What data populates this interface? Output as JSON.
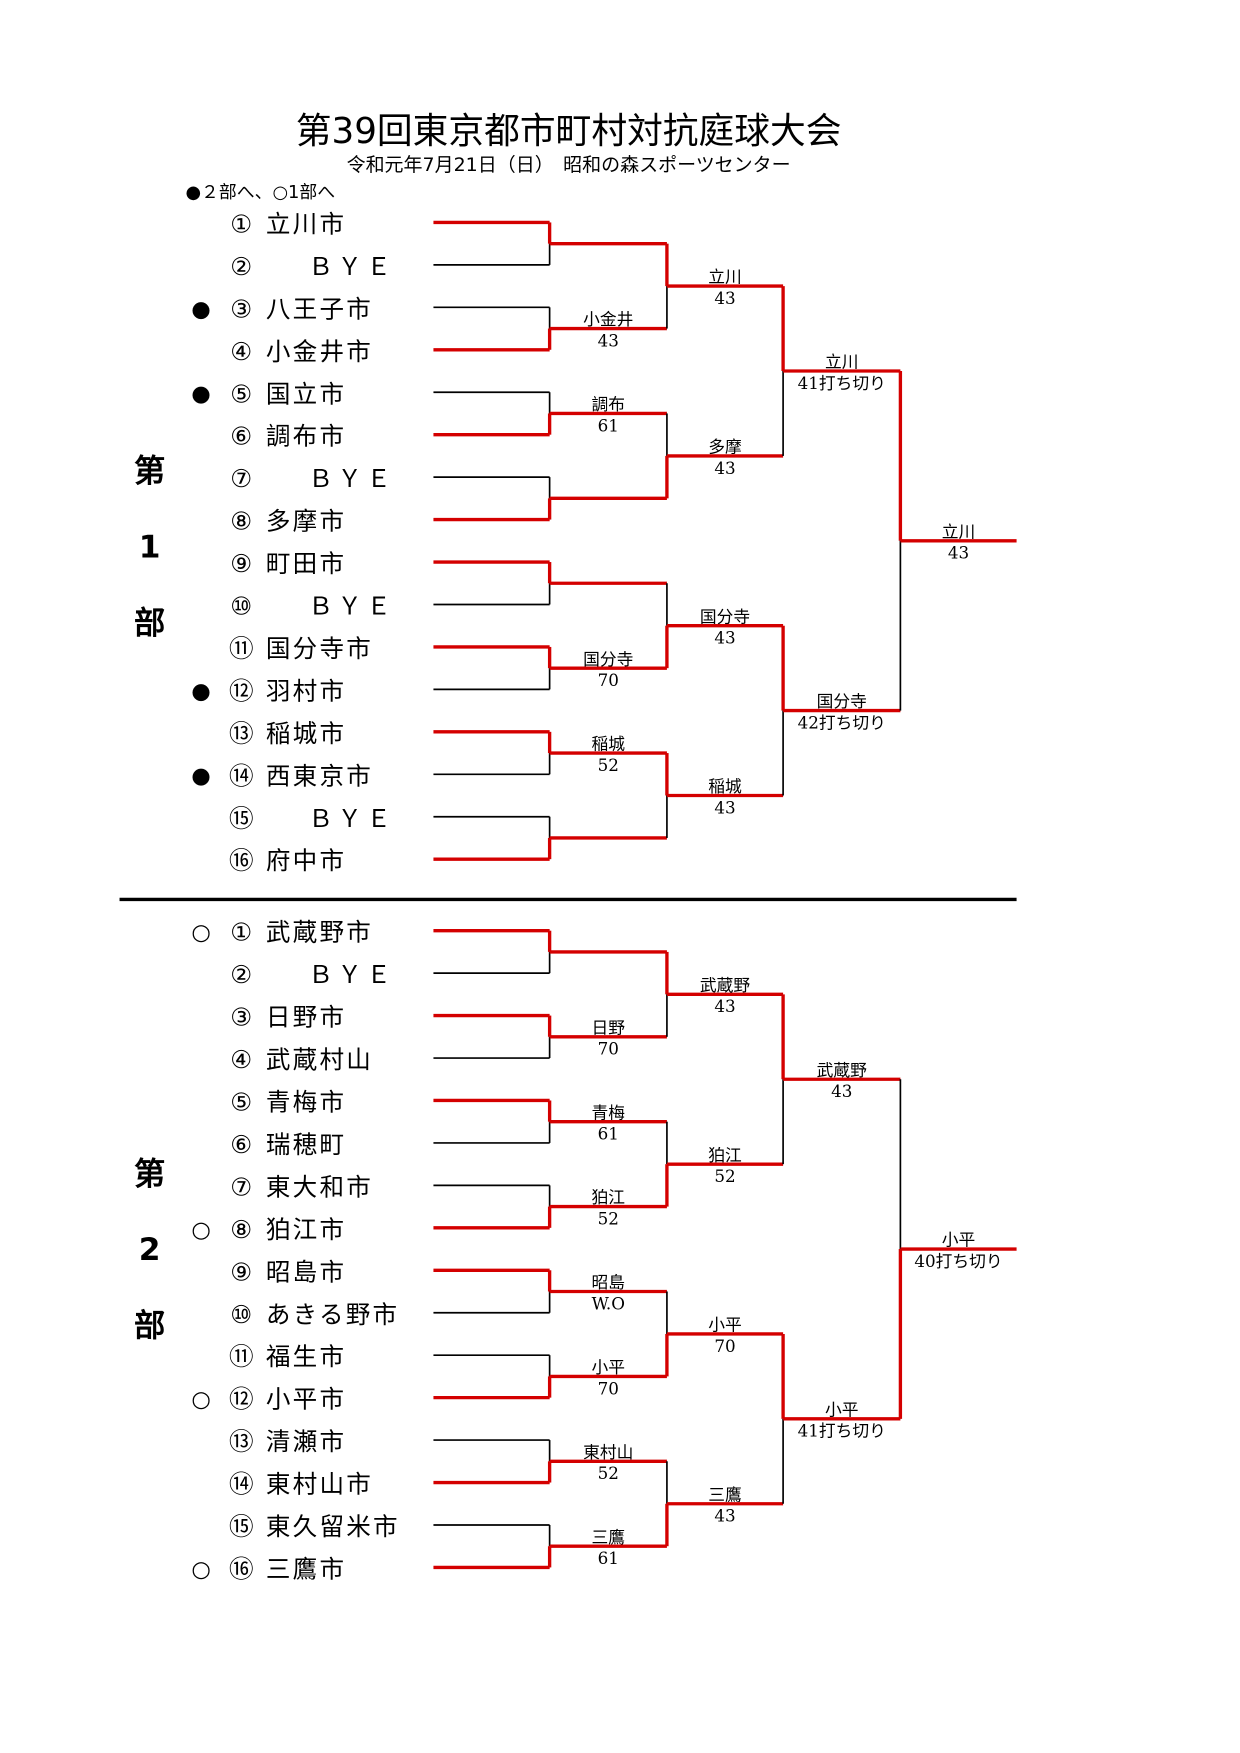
{
  "header": {
    "title": "第39回東京都市町村対抗庭球大会",
    "subtitle": "令和元年7月21日（日）　昭和の森スポーツセンター",
    "legend": "●２部へ、○1部へ"
  },
  "colors": {
    "winner_line": "#d40000",
    "loser_line": "#000000"
  },
  "sections": [
    {
      "label": [
        "第",
        "1",
        "部"
      ],
      "entries": [
        {
          "marker": "",
          "num": "①",
          "name": "立川市"
        },
        {
          "marker": "",
          "num": "②",
          "name": "ＢＹＥ"
        },
        {
          "marker": "●",
          "num": "③",
          "name": "八王子市"
        },
        {
          "marker": "",
          "num": "④",
          "name": "小金井市"
        },
        {
          "marker": "●",
          "num": "⑤",
          "name": "国立市"
        },
        {
          "marker": "",
          "num": "⑥",
          "name": "調布市"
        },
        {
          "marker": "",
          "num": "⑦",
          "name": "ＢＹＥ"
        },
        {
          "marker": "",
          "num": "⑧",
          "name": "多摩市"
        },
        {
          "marker": "",
          "num": "⑨",
          "name": "町田市"
        },
        {
          "marker": "",
          "num": "⑩",
          "name": "ＢＹＥ"
        },
        {
          "marker": "",
          "num": "⑪",
          "name": "国分寺市"
        },
        {
          "marker": "●",
          "num": "⑫",
          "name": "羽村市"
        },
        {
          "marker": "",
          "num": "⑬",
          "name": "稲城市"
        },
        {
          "marker": "●",
          "num": "⑭",
          "name": "西東京市"
        },
        {
          "marker": "",
          "num": "⑮",
          "name": "ＢＹＥ"
        },
        {
          "marker": "",
          "num": "⑯",
          "name": "府中市"
        }
      ],
      "rounds": [
        [
          {
            "winner": "top",
            "name": "",
            "score": ""
          },
          {
            "winner": "bottom",
            "name": "小金井",
            "score": "43"
          },
          {
            "winner": "bottom",
            "name": "調布",
            "score": "61"
          },
          {
            "winner": "bottom",
            "name": "",
            "score": ""
          },
          {
            "winner": "top",
            "name": "",
            "score": ""
          },
          {
            "winner": "top",
            "name": "国分寺",
            "score": "70"
          },
          {
            "winner": "top",
            "name": "稲城",
            "score": "52"
          },
          {
            "winner": "bottom",
            "name": "",
            "score": ""
          }
        ],
        [
          {
            "winner": "top",
            "name": "立川",
            "score": "43"
          },
          {
            "winner": "bottom",
            "name": "多摩",
            "score": "43"
          },
          {
            "winner": "bottom",
            "name": "国分寺",
            "score": "43"
          },
          {
            "winner": "top",
            "name": "稲城",
            "score": "43"
          }
        ],
        [
          {
            "winner": "top",
            "name": "立川",
            "score": "41打ち切り"
          },
          {
            "winner": "top",
            "name": "国分寺",
            "score": "42打ち切り"
          }
        ],
        [
          {
            "winner": "top",
            "name": "立川",
            "score": "43"
          }
        ]
      ]
    },
    {
      "label": [
        "第",
        "2",
        "部"
      ],
      "entries": [
        {
          "marker": "○",
          "num": "①",
          "name": "武蔵野市"
        },
        {
          "marker": "",
          "num": "②",
          "name": "ＢＹＥ"
        },
        {
          "marker": "",
          "num": "③",
          "name": "日野市"
        },
        {
          "marker": "",
          "num": "④",
          "name": "武蔵村山"
        },
        {
          "marker": "",
          "num": "⑤",
          "name": "青梅市"
        },
        {
          "marker": "",
          "num": "⑥",
          "name": "瑞穂町"
        },
        {
          "marker": "",
          "num": "⑦",
          "name": "東大和市"
        },
        {
          "marker": "○",
          "num": "⑧",
          "name": "狛江市"
        },
        {
          "marker": "",
          "num": "⑨",
          "name": "昭島市"
        },
        {
          "marker": "",
          "num": "⑩",
          "name": "あきる野市"
        },
        {
          "marker": "",
          "num": "⑪",
          "name": "福生市"
        },
        {
          "marker": "○",
          "num": "⑫",
          "name": "小平市"
        },
        {
          "marker": "",
          "num": "⑬",
          "name": "清瀬市"
        },
        {
          "marker": "",
          "num": "⑭",
          "name": "東村山市"
        },
        {
          "marker": "",
          "num": "⑮",
          "name": "東久留米市"
        },
        {
          "marker": "○",
          "num": "⑯",
          "name": "三鷹市"
        }
      ],
      "rounds": [
        [
          {
            "winner": "top",
            "name": "",
            "score": ""
          },
          {
            "winner": "top",
            "name": "日野",
            "score": "70"
          },
          {
            "winner": "top",
            "name": "青梅",
            "score": "61"
          },
          {
            "winner": "bottom",
            "name": "狛江",
            "score": "52"
          },
          {
            "winner": "top",
            "name": "昭島",
            "score": "W.O"
          },
          {
            "winner": "bottom",
            "name": "小平",
            "score": "70"
          },
          {
            "winner": "bottom",
            "name": "東村山",
            "score": "52"
          },
          {
            "winner": "bottom",
            "name": "三鷹",
            "score": "61"
          }
        ],
        [
          {
            "winner": "top",
            "name": "武蔵野",
            "score": "43"
          },
          {
            "winner": "bottom",
            "name": "狛江",
            "score": "52"
          },
          {
            "winner": "bottom",
            "name": "小平",
            "score": "70"
          },
          {
            "winner": "bottom",
            "name": "三鷹",
            "score": "43"
          }
        ],
        [
          {
            "winner": "top",
            "name": "武蔵野",
            "score": "43"
          },
          {
            "winner": "top",
            "name": "小平",
            "score": "41打ち切り"
          }
        ],
        [
          {
            "winner": "bottom",
            "name": "小平",
            "score": "40打ち切り"
          }
        ]
      ]
    }
  ]
}
